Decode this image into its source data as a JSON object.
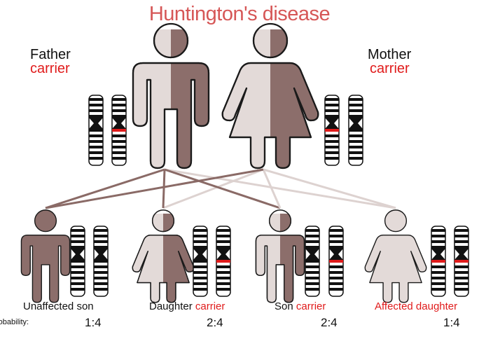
{
  "title": "Huntington's disease",
  "father": {
    "name": "Father",
    "status": "carrier"
  },
  "mother": {
    "name": "Mother",
    "status": "carrier"
  },
  "children": [
    {
      "label": "Unaffected son",
      "label_status": "",
      "probability": "1:4"
    },
    {
      "label": "Daughter",
      "label_status": "carrier",
      "probability": "2:4"
    },
    {
      "label": "Son",
      "label_status": "carrier",
      "probability": "2:4"
    },
    {
      "label": "",
      "label_status": "Affected daughter",
      "probability": "1:4"
    }
  ],
  "probability_label": "robability:",
  "colors": {
    "title": "#d65757",
    "status_red": "#e01b1b",
    "dark_figure": "#8c6e6b",
    "light_figure": "#e3dad8",
    "line_dark": "#8a6a66",
    "line_light": "#ddd2d0"
  }
}
